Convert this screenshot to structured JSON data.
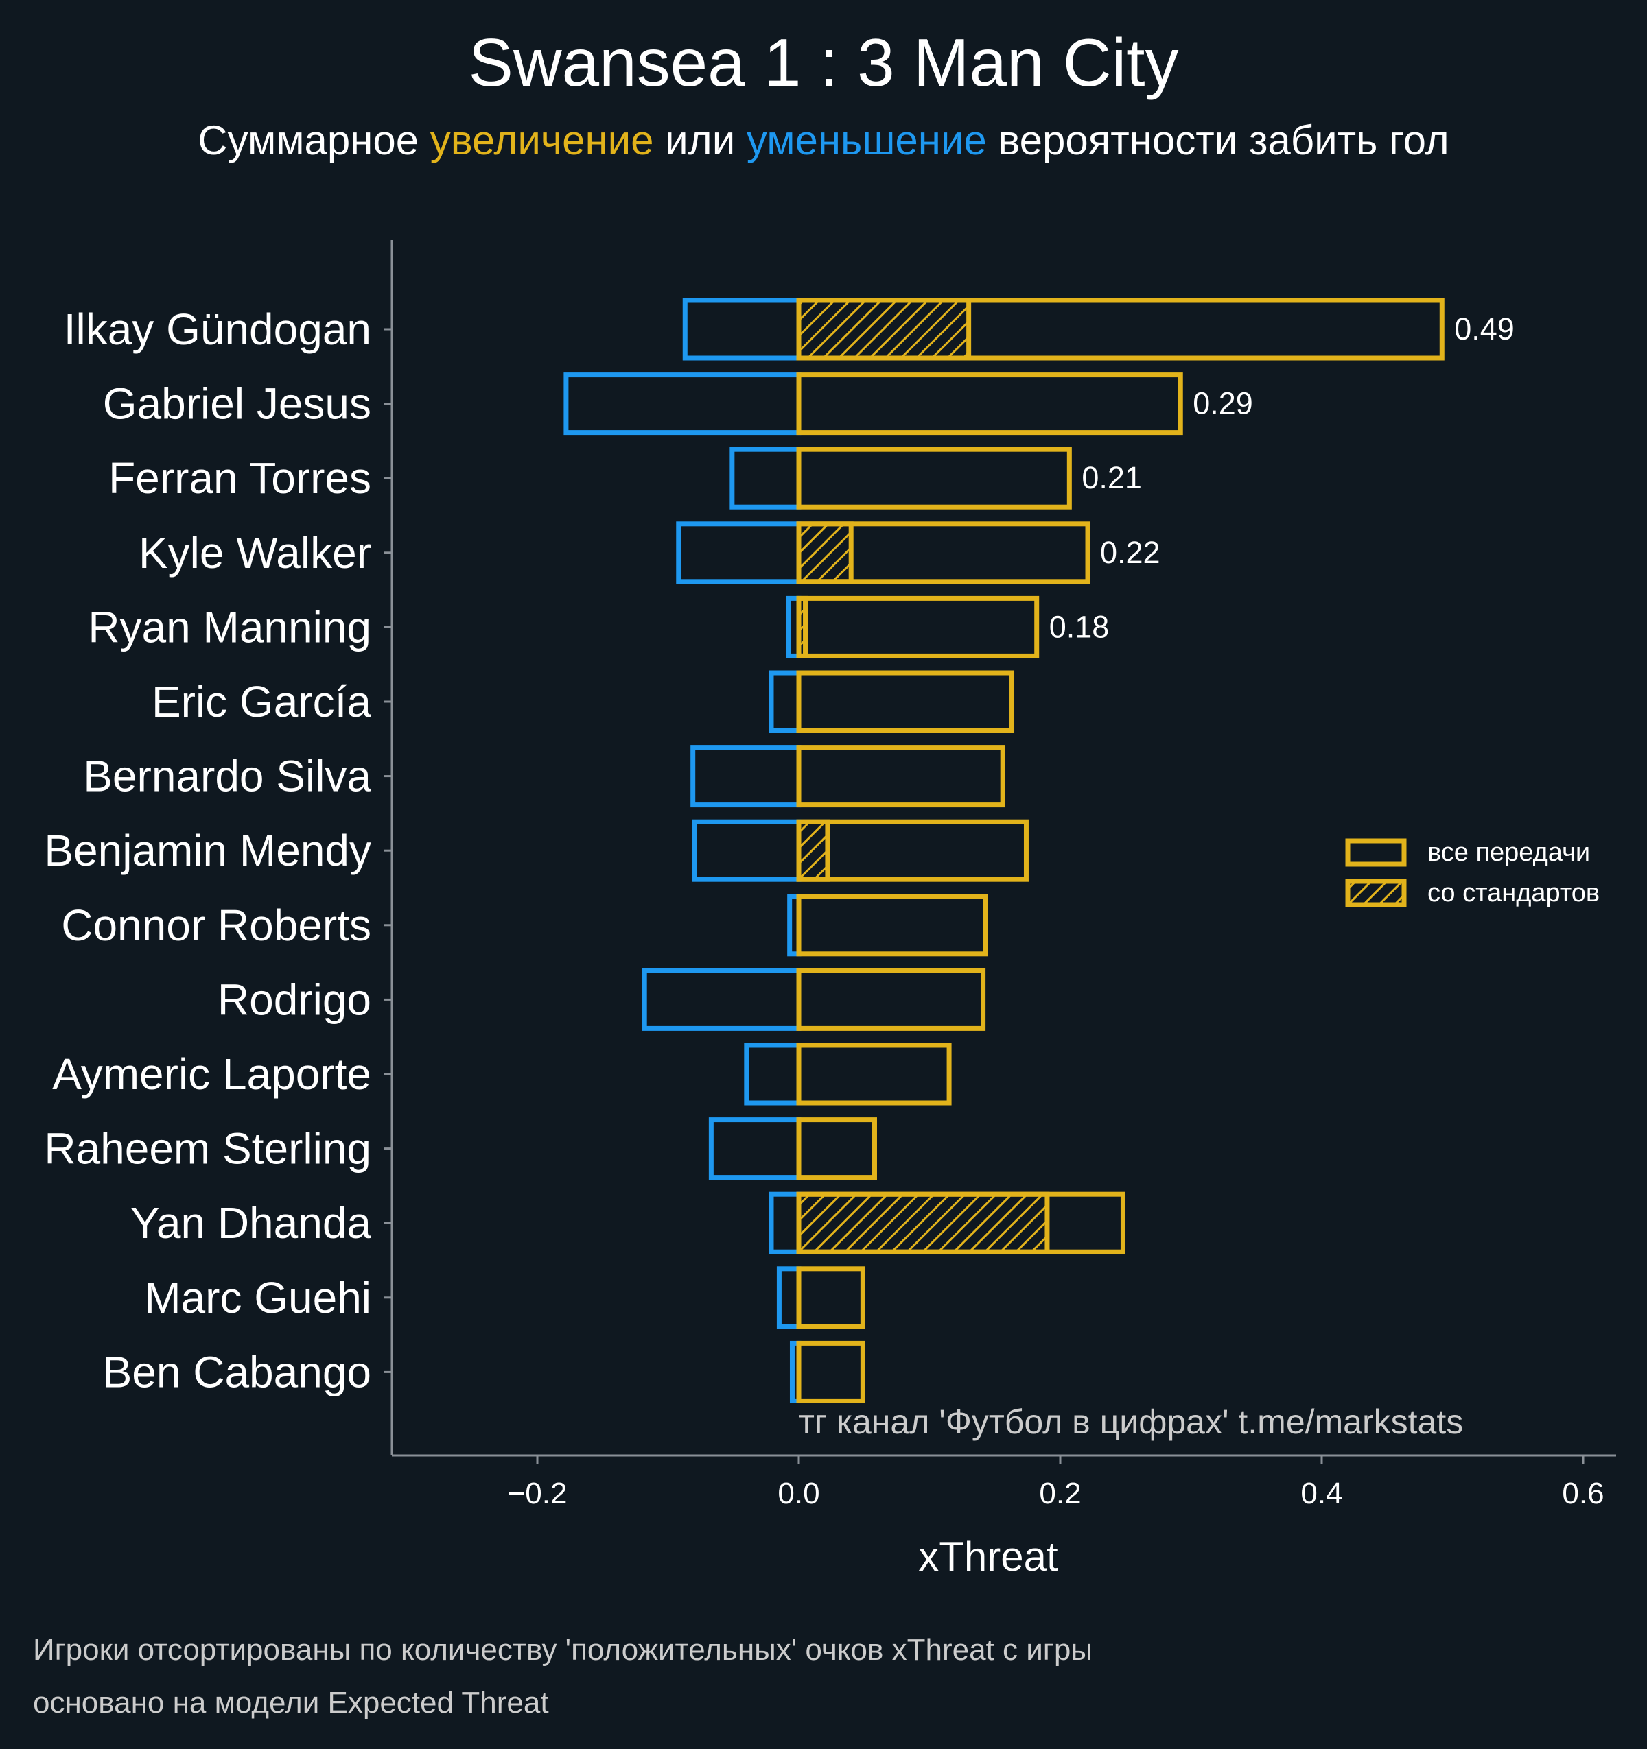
{
  "colors": {
    "background": "#0f1820",
    "positive": "#e2b31b",
    "negative": "#1e98f0",
    "text": "#ffffff",
    "muted": "#cccccc",
    "axis": "#8a9097"
  },
  "chart_data": {
    "type": "bar",
    "orientation": "horizontal",
    "title": "Swansea 1 : 3 Man City",
    "subtitle": {
      "part1": "Суммарное ",
      "part2": "увеличение",
      "part3": " или ",
      "part4": "уменьшение",
      "part5": " вероятности забить гол"
    },
    "xlabel": "xThreat",
    "xlim": [
      -0.31,
      0.625
    ],
    "xticks": [
      -0.2,
      0.0,
      0.2,
      0.4,
      0.6
    ],
    "xtick_labels": [
      "−0.2",
      "0.0",
      "0.2",
      "0.4",
      "0.6"
    ],
    "categories": [
      "Ilkay Gündogan",
      "Gabriel Jesus",
      "Ferran Torres",
      "Kyle Walker",
      "Ryan Manning",
      "Eric García",
      "Bernardo Silva",
      "Benjamin Mendy",
      "Connor Roberts",
      "Rodrigo",
      "Aymeric Laporte",
      "Raheem Sterling",
      "Yan Dhanda",
      "Marc Guehi",
      "Ben Cabango"
    ],
    "series": [
      {
        "name": "negative",
        "values": [
          -0.087,
          -0.178,
          -0.051,
          -0.092,
          -0.008,
          -0.021,
          -0.081,
          -0.08,
          -0.007,
          -0.118,
          -0.04,
          -0.067,
          -0.021,
          -0.015,
          -0.005
        ]
      },
      {
        "name": "все передачи",
        "values": [
          0.492,
          0.292,
          0.207,
          0.221,
          0.182,
          0.163,
          0.156,
          0.174,
          0.143,
          0.141,
          0.115,
          0.058,
          0.248,
          0.049,
          0.049
        ]
      },
      {
        "name": "со стандартов",
        "values": [
          0.13,
          0,
          0,
          0.04,
          0.005,
          0,
          0,
          0.022,
          0,
          0,
          0,
          0,
          0.19,
          0,
          0
        ]
      }
    ],
    "data_labels": [
      "0.49",
      "0.29",
      "0.21",
      "0.22",
      "0.18",
      "",
      "",
      "",
      "",
      "",
      "",
      "",
      "",
      "",
      ""
    ],
    "legend": {
      "position": "right",
      "entries": [
        "все передачи",
        "со стандартов"
      ]
    },
    "watermark": "тг канал 'Футбол в цифрах'  t.me/markstats",
    "footnotes": [
      "Игроки отсортированы по количеству 'положительных' очков xThreat с игры",
      "основано на модели Expected Threat"
    ]
  }
}
